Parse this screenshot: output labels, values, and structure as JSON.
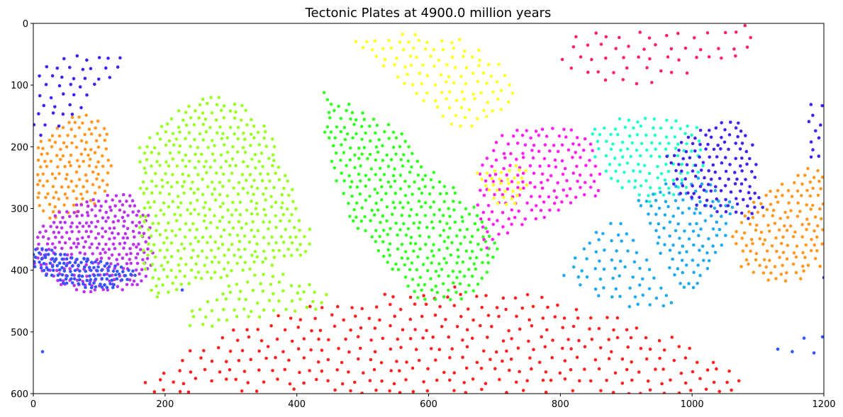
{
  "chart_data": {
    "type": "scatter",
    "title": "Tectonic Plates at 4900.0 million years",
    "xlabel": "",
    "ylabel": "",
    "xlim": [
      0,
      1200
    ],
    "ylim": [
      600,
      0
    ],
    "y_inverted": true,
    "grid": false,
    "legend": "none",
    "x_ticks": [
      "0",
      "200",
      "400",
      "600",
      "800",
      "1000",
      "1200"
    ],
    "y_ticks": [
      "0",
      "100",
      "200",
      "300",
      "400",
      "500",
      "600"
    ],
    "plates": [
      {
        "color": "#ff2020",
        "shape": "poly",
        "vertices": [
          [
            165,
            585
          ],
          [
            230,
            530
          ],
          [
            330,
            485
          ],
          [
            450,
            450
          ],
          [
            560,
            430
          ],
          [
            680,
            425
          ],
          [
            780,
            440
          ],
          [
            880,
            470
          ],
          [
            980,
            510
          ],
          [
            1060,
            550
          ],
          [
            1090,
            600
          ],
          [
            160,
            600
          ]
        ],
        "spacing": 20,
        "seed": 11
      },
      {
        "color": "#ff9922",
        "shape": "poly",
        "vertices": [
          [
            5,
            190
          ],
          [
            40,
            160
          ],
          [
            85,
            140
          ],
          [
            115,
            170
          ],
          [
            120,
            230
          ],
          [
            110,
            280
          ],
          [
            70,
            310
          ],
          [
            20,
            330
          ],
          [
            5,
            300
          ]
        ],
        "spacing": 12,
        "seed": 12
      },
      {
        "color": "#ff9922",
        "shape": "poly",
        "vertices": [
          [
            1080,
            300
          ],
          [
            1120,
            270
          ],
          [
            1160,
            240
          ],
          [
            1200,
            225
          ],
          [
            1200,
            390
          ],
          [
            1170,
            415
          ],
          [
            1120,
            420
          ],
          [
            1070,
            395
          ],
          [
            1055,
            340
          ]
        ],
        "spacing": 13,
        "seed": 13
      },
      {
        "color": "#bb33ee",
        "shape": "poly",
        "vertices": [
          [
            0,
            340
          ],
          [
            40,
            305
          ],
          [
            100,
            280
          ],
          [
            140,
            270
          ],
          [
            175,
            310
          ],
          [
            185,
            380
          ],
          [
            165,
            425
          ],
          [
            100,
            440
          ],
          [
            50,
            430
          ],
          [
            0,
            395
          ]
        ],
        "spacing": 10,
        "seed": 14
      },
      {
        "color": "#3355ff",
        "shape": "poly",
        "vertices": [
          [
            0,
            360
          ],
          [
            40,
            370
          ],
          [
            100,
            385
          ],
          [
            140,
            395
          ],
          [
            160,
            405
          ],
          [
            110,
            435
          ],
          [
            60,
            428
          ],
          [
            20,
            410
          ],
          [
            0,
            395
          ]
        ],
        "spacing": 8,
        "seed": 15
      },
      {
        "color": "#99ff22",
        "shape": "poly",
        "vertices": [
          [
            160,
            200
          ],
          [
            210,
            145
          ],
          [
            270,
            110
          ],
          [
            320,
            130
          ],
          [
            360,
            170
          ],
          [
            390,
            250
          ],
          [
            400,
            300
          ],
          [
            430,
            350
          ],
          [
            410,
            375
          ],
          [
            350,
            400
          ],
          [
            260,
            420
          ],
          [
            185,
            450
          ],
          [
            160,
            390
          ]
        ],
        "spacing": 13,
        "seed": 16
      },
      {
        "color": "#99ff22",
        "shape": "poly",
        "vertices": [
          [
            230,
            470
          ],
          [
            300,
            420
          ],
          [
            360,
            395
          ],
          [
            420,
            420
          ],
          [
            460,
            445
          ],
          [
            420,
            470
          ],
          [
            330,
            480
          ],
          [
            240,
            500
          ]
        ],
        "spacing": 16,
        "seed": 17
      },
      {
        "color": "#33ff22",
        "shape": "poly",
        "vertices": [
          [
            440,
            110
          ],
          [
            500,
            140
          ],
          [
            560,
            175
          ],
          [
            600,
            230
          ],
          [
            650,
            275
          ],
          [
            690,
            320
          ],
          [
            710,
            370
          ],
          [
            690,
            420
          ],
          [
            650,
            450
          ],
          [
            580,
            450
          ],
          [
            530,
            380
          ],
          [
            480,
            320
          ],
          [
            455,
            240
          ],
          [
            440,
            170
          ]
        ],
        "spacing": 13,
        "seed": 18
      },
      {
        "color": "#ffff22",
        "shape": "poly",
        "vertices": [
          [
            465,
            20
          ],
          [
            560,
            15
          ],
          [
            650,
            25
          ],
          [
            720,
            70
          ],
          [
            740,
            110
          ],
          [
            700,
            150
          ],
          [
            650,
            180
          ],
          [
            600,
            140
          ],
          [
            560,
            95
          ],
          [
            500,
            50
          ]
        ],
        "spacing": 16,
        "seed": 19
      },
      {
        "color": "#ff22ee",
        "shape": "poly",
        "vertices": [
          [
            670,
            245
          ],
          [
            710,
            180
          ],
          [
            770,
            160
          ],
          [
            840,
            175
          ],
          [
            860,
            240
          ],
          [
            870,
            270
          ],
          [
            820,
            300
          ],
          [
            760,
            320
          ],
          [
            710,
            350
          ],
          [
            690,
            375
          ],
          [
            670,
            310
          ]
        ],
        "spacing": 14,
        "seed": 20
      },
      {
        "color": "#ffff22",
        "shape": "poly",
        "vertices": [
          [
            670,
            240
          ],
          [
            730,
            230
          ],
          [
            760,
            240
          ],
          [
            740,
            290
          ],
          [
            710,
            300
          ],
          [
            685,
            270
          ]
        ],
        "spacing": 12,
        "seed": 21
      },
      {
        "color": "#ff2266",
        "shape": "poly",
        "vertices": [
          [
            795,
            15
          ],
          [
            900,
            5
          ],
          [
            1000,
            5
          ],
          [
            1110,
            0
          ],
          [
            1090,
            45
          ],
          [
            1010,
            80
          ],
          [
            930,
            100
          ],
          [
            880,
            95
          ],
          [
            820,
            80
          ],
          [
            795,
            60
          ]
        ],
        "spacing": 22,
        "seed": 22
      },
      {
        "color": "#22ffcc",
        "shape": "poly",
        "vertices": [
          [
            840,
            170
          ],
          [
            900,
            150
          ],
          [
            960,
            145
          ],
          [
            1010,
            170
          ],
          [
            1020,
            230
          ],
          [
            985,
            275
          ],
          [
            930,
            295
          ],
          [
            880,
            260
          ],
          [
            850,
            215
          ]
        ],
        "spacing": 14,
        "seed": 23
      },
      {
        "color": "#22aaee",
        "shape": "poly",
        "vertices": [
          [
            800,
            400
          ],
          [
            840,
            355
          ],
          [
            880,
            310
          ],
          [
            920,
            340
          ],
          [
            950,
            410
          ],
          [
            975,
            465
          ],
          [
            910,
            465
          ],
          [
            850,
            440
          ],
          [
            800,
            420
          ]
        ],
        "spacing": 17,
        "seed": 24
      },
      {
        "color": "#22aaee",
        "shape": "poly",
        "vertices": [
          [
            910,
            290
          ],
          [
            960,
            255
          ],
          [
            1020,
            250
          ],
          [
            1070,
            290
          ],
          [
            1050,
            350
          ],
          [
            1020,
            420
          ],
          [
            990,
            440
          ],
          [
            955,
            380
          ]
        ],
        "spacing": 14,
        "seed": 25
      },
      {
        "color": "#4422ee",
        "shape": "poly",
        "vertices": [
          [
            960,
            210
          ],
          [
            1010,
            170
          ],
          [
            1060,
            150
          ],
          [
            1090,
            175
          ],
          [
            1100,
            240
          ],
          [
            1110,
            300
          ],
          [
            1090,
            320
          ],
          [
            1050,
            310
          ],
          [
            1000,
            300
          ],
          [
            965,
            260
          ]
        ],
        "spacing": 13,
        "seed": 26
      },
      {
        "color": "#4422ee",
        "shape": "poly",
        "vertices": [
          [
            0,
            80
          ],
          [
            60,
            50
          ],
          [
            120,
            40
          ],
          [
            155,
            50
          ],
          [
            120,
            90
          ],
          [
            70,
            140
          ],
          [
            25,
            180
          ],
          [
            0,
            185
          ]
        ],
        "spacing": 18,
        "seed": 27
      },
      {
        "color": "#4422ee",
        "shape": "poly",
        "vertices": [
          [
            1170,
            120
          ],
          [
            1200,
            125
          ],
          [
            1200,
            230
          ],
          [
            1175,
            215
          ]
        ],
        "spacing": 16,
        "seed": 28
      }
    ],
    "extra_points": [
      {
        "x": 14,
        "y": 532,
        "color": "#3355ff"
      },
      {
        "x": 226,
        "y": 432,
        "color": "#3355ff"
      },
      {
        "x": 1130,
        "y": 528,
        "color": "#3355ff"
      },
      {
        "x": 1152,
        "y": 532,
        "color": "#3355ff"
      },
      {
        "x": 1170,
        "y": 510,
        "color": "#3355ff"
      },
      {
        "x": 1185,
        "y": 534,
        "color": "#3355ff"
      },
      {
        "x": 1198,
        "y": 508,
        "color": "#3355ff"
      },
      {
        "x": 1200,
        "y": 412,
        "color": "#4422ee"
      }
    ]
  }
}
